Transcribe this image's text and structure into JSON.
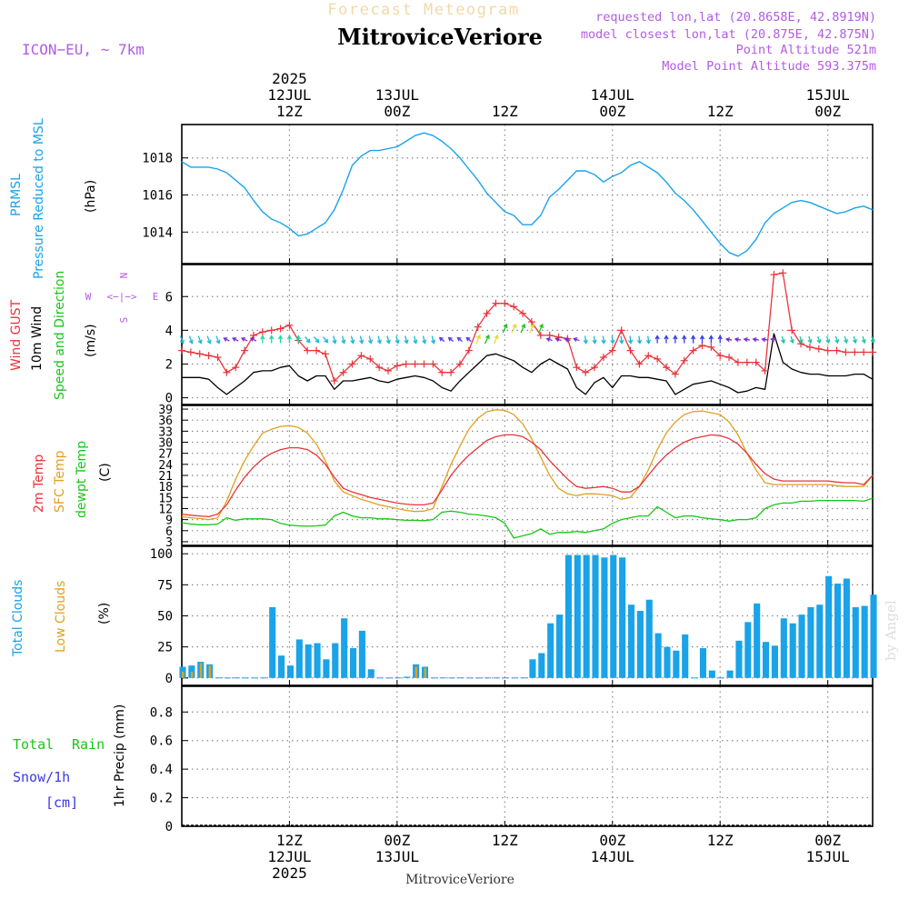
{
  "header": {
    "title_top": "Forecast Meteogram",
    "location": "MitroviceVeriore",
    "model": "ICON−EU,  ~ 7km",
    "requested": "requested lon,lat (20.8658E, 42.8919N)",
    "closest": "model closest lon,lat (20.875E, 42.875N)",
    "point_alt": "Point Altitude 521m",
    "model_alt": "Model Point Altitude 593.375m"
  },
  "time_axis": {
    "year": "2025",
    "ticks": [
      {
        "hour": 12,
        "top": "12Z",
        "date": "12JUL",
        "year": "2025"
      },
      {
        "hour": 24,
        "top": "00Z",
        "date": "13JUL",
        "year": ""
      },
      {
        "hour": 36,
        "top": "12Z",
        "date": "",
        "year": ""
      },
      {
        "hour": 48,
        "top": "00Z",
        "date": "14JUL",
        "year": ""
      },
      {
        "hour": 60,
        "top": "12Z",
        "date": "",
        "year": ""
      },
      {
        "hour": 72,
        "top": "00Z",
        "date": "15JUL",
        "year": ""
      }
    ]
  },
  "footer": {
    "location": "MitroviceVeriore",
    "watermark": "by Angel"
  },
  "panels": {
    "pressure": {
      "label1": "PRMSL",
      "label2": "Pressure Reduced to MSL",
      "unit": "(hPa)"
    },
    "wind": {
      "label1": "Wind GUST",
      "label2": "10m Wind",
      "label3": "Speed and Direction",
      "unit": "(m/s)",
      "compass_n": "N",
      "compass_s": "S",
      "compass_w": "W",
      "compass_e": "E",
      "compass_mid": "<−|−>"
    },
    "temp": {
      "label1": "2m Temp",
      "label2": "SFC Temp",
      "label3": "dewpt Temp",
      "unit": "(C)"
    },
    "clouds": {
      "label1": "Total Clouds",
      "label2": "Low Clouds",
      "unit": "(%)"
    },
    "precip": {
      "label1": "Total",
      "label1b": "Rain",
      "label2": "Snow/1h",
      "label3": "[cm]",
      "unit": "1hr Precip (mm)"
    }
  },
  "colors": {
    "pressure": "#1aa3e8",
    "gust": "#e8343a",
    "wind": "#000000",
    "temp2m": "#e8343a",
    "sfc": "#e0a020",
    "dewpt": "#19c519",
    "total_clouds": "#1aa3e8",
    "low_clouds": "#e0a020",
    "purple": "#b25ce0",
    "rain": "#19c519",
    "snow": "#3a3ae8"
  },
  "chart_data": [
    {
      "type": "line",
      "name": "pressure",
      "x_range": [
        0,
        77
      ],
      "ylim": [
        1012.3,
        1019.8
      ],
      "yticks": [
        1014,
        1016,
        1018
      ],
      "x": [
        0,
        1,
        2,
        3,
        4,
        5,
        6,
        7,
        8,
        9,
        10,
        11,
        12,
        13,
        14,
        15,
        16,
        17,
        18,
        19,
        20,
        21,
        22,
        23,
        24,
        25,
        26,
        27,
        28,
        29,
        30,
        31,
        32,
        33,
        34,
        35,
        36,
        37,
        38,
        39,
        40,
        41,
        42,
        43,
        44,
        45,
        46,
        47,
        48,
        49,
        50,
        51,
        52,
        53,
        54,
        55,
        56,
        57,
        58,
        59,
        60,
        61,
        62,
        63,
        64,
        65,
        66,
        67,
        68,
        69,
        70,
        71,
        72,
        73,
        74,
        75,
        76,
        77
      ],
      "series": [
        {
          "values": [
            1017.8,
            1017.5,
            1017.5,
            1017.5,
            1017.4,
            1017.2,
            1016.8,
            1016.4,
            1015.7,
            1015.1,
            1014.7,
            1014.5,
            1014.2,
            1013.8,
            1013.9,
            1014.2,
            1014.5,
            1015.2,
            1016.3,
            1017.6,
            1018.1,
            1018.4,
            1018.4,
            1018.5,
            1018.6,
            1018.9,
            1019.2,
            1019.35,
            1019.2,
            1018.9,
            1018.5,
            1018.0,
            1017.4,
            1016.8,
            1016.1,
            1015.6,
            1015.1,
            1014.9,
            1014.4,
            1014.4,
            1014.9,
            1015.9,
            1016.3,
            1016.8,
            1017.3,
            1017.3,
            1017.1,
            1016.7,
            1017.0,
            1017.2,
            1017.6,
            1017.8,
            1017.5,
            1017.2,
            1016.7,
            1016.1,
            1015.7,
            1015.2,
            1014.6,
            1014.0,
            1013.4,
            1012.9,
            1012.7,
            1013.0,
            1013.6,
            1014.5,
            1015.0,
            1015.3,
            1015.6,
            1015.7,
            1015.6,
            1015.4,
            1015.2,
            1015.0,
            1015.1,
            1015.3,
            1015.4,
            1015.2
          ]
        }
      ]
    },
    {
      "type": "line",
      "name": "wind",
      "x_range": [
        0,
        77
      ],
      "ylim": [
        -0.4,
        7.9
      ],
      "yticks": [
        0,
        2,
        4,
        6
      ],
      "x": [
        0,
        1,
        2,
        3,
        4,
        5,
        6,
        7,
        8,
        9,
        10,
        11,
        12,
        13,
        14,
        15,
        16,
        17,
        18,
        19,
        20,
        21,
        22,
        23,
        24,
        25,
        26,
        27,
        28,
        29,
        30,
        31,
        32,
        33,
        34,
        35,
        36,
        37,
        38,
        39,
        40,
        41,
        42,
        43,
        44,
        45,
        46,
        47,
        48,
        49,
        50,
        51,
        52,
        53,
        54,
        55,
        56,
        57,
        58,
        59,
        60,
        61,
        62,
        63,
        64,
        65,
        66,
        67,
        68,
        69,
        70,
        71,
        72,
        73,
        74,
        75,
        76,
        77
      ],
      "series": [
        {
          "name": "Wind GUST",
          "values": [
            2.8,
            2.7,
            2.6,
            2.5,
            2.4,
            1.5,
            1.8,
            2.8,
            3.7,
            3.9,
            4.0,
            4.1,
            4.3,
            3.4,
            2.8,
            2.8,
            2.6,
            1.0,
            1.5,
            2.0,
            2.5,
            2.3,
            1.8,
            1.6,
            1.9,
            2.0,
            2.0,
            2.0,
            2.0,
            1.5,
            1.5,
            2.0,
            2.8,
            4.2,
            5.0,
            5.6,
            5.6,
            5.4,
            5.0,
            4.5,
            3.7,
            3.7,
            3.6,
            3.5,
            1.8,
            1.5,
            1.8,
            2.4,
            2.8,
            4.0,
            2.8,
            2.0,
            2.5,
            2.3,
            1.8,
            1.4,
            2.2,
            2.8,
            3.1,
            3.0,
            2.5,
            2.4,
            2.1,
            2.1,
            2.1,
            1.6,
            7.3,
            7.4,
            4.0,
            3.2,
            3.0,
            2.9,
            2.8,
            2.8,
            2.7,
            2.7,
            2.7,
            2.7
          ]
        },
        {
          "name": "10m Wind",
          "values": [
            1.2,
            1.2,
            1.2,
            1.1,
            0.6,
            0.2,
            0.6,
            1.0,
            1.5,
            1.6,
            1.6,
            1.8,
            1.9,
            1.3,
            1.0,
            1.3,
            1.3,
            0.5,
            1.0,
            1.0,
            1.1,
            1.2,
            1.0,
            0.9,
            1.1,
            1.2,
            1.3,
            1.2,
            1.0,
            0.6,
            0.4,
            1.0,
            1.5,
            2.0,
            2.5,
            2.6,
            2.4,
            2.2,
            1.8,
            1.5,
            2.0,
            2.3,
            2.0,
            1.7,
            0.6,
            0.2,
            0.9,
            1.2,
            0.6,
            1.3,
            1.3,
            1.2,
            1.2,
            1.1,
            1.0,
            0.2,
            0.5,
            0.8,
            0.9,
            1.0,
            0.8,
            0.6,
            0.3,
            0.4,
            0.6,
            0.5,
            3.8,
            2.1,
            1.7,
            1.5,
            1.4,
            1.4,
            1.3,
            1.3,
            1.3,
            1.4,
            1.4,
            1.1
          ]
        }
      ]
    },
    {
      "type": "line",
      "name": "temperature",
      "x_range": [
        0,
        77
      ],
      "ylim": [
        2,
        40
      ],
      "yticks": [
        3,
        6,
        9,
        12,
        15,
        18,
        21,
        24,
        27,
        30,
        33,
        36,
        39
      ],
      "x": [
        0,
        1,
        2,
        3,
        4,
        5,
        6,
        7,
        8,
        9,
        10,
        11,
        12,
        13,
        14,
        15,
        16,
        17,
        18,
        19,
        20,
        21,
        22,
        23,
        24,
        25,
        26,
        27,
        28,
        29,
        30,
        31,
        32,
        33,
        34,
        35,
        36,
        37,
        38,
        39,
        40,
        41,
        42,
        43,
        44,
        45,
        46,
        47,
        48,
        49,
        50,
        51,
        52,
        53,
        54,
        55,
        56,
        57,
        58,
        59,
        60,
        61,
        62,
        63,
        64,
        65,
        66,
        67,
        68,
        69,
        70,
        71,
        72,
        73,
        74,
        75,
        76,
        77
      ],
      "series": [
        {
          "name": "2m Temp",
          "values": [
            10.5,
            10.2,
            10,
            9.8,
            10.5,
            13,
            17,
            20.5,
            23.3,
            25.5,
            27,
            28,
            28.5,
            28.5,
            28,
            26.5,
            24,
            20.5,
            17.5,
            16.5,
            15.8,
            15,
            14.5,
            14,
            13.5,
            13.2,
            13,
            13,
            13.5,
            17,
            21,
            24,
            26.5,
            28.5,
            30.5,
            31.5,
            32,
            32,
            31.5,
            30,
            28,
            25,
            22.5,
            20,
            18,
            17.5,
            17.7,
            18,
            17.5,
            16.5,
            16.5,
            18,
            21,
            24,
            26.5,
            28.5,
            30,
            31,
            31.5,
            32,
            31.8,
            31,
            29.5,
            27,
            24,
            21.5,
            20,
            19.5,
            19.5,
            19.5,
            19.5,
            19.5,
            19.5,
            19.2,
            19,
            19,
            18.5,
            21
          ]
        },
        {
          "name": "SFC Temp",
          "values": [
            9.8,
            9.5,
            9.3,
            9.0,
            9.5,
            14,
            20,
            25,
            29,
            32.5,
            33.5,
            34.3,
            34.5,
            34,
            32.5,
            29.5,
            25,
            19.5,
            16.5,
            15.5,
            14.5,
            13.8,
            13,
            12.5,
            12,
            11.5,
            11.2,
            11.3,
            12,
            18,
            24,
            29,
            33.5,
            36.5,
            38.3,
            38.8,
            38.7,
            37.5,
            35,
            31,
            26,
            21,
            17.5,
            16,
            15.5,
            16,
            16,
            15.8,
            15.5,
            14.5,
            15,
            18,
            22.5,
            28,
            32.5,
            35.5,
            37.5,
            38.3,
            38.5,
            38,
            37.5,
            35.5,
            32,
            27,
            22.5,
            19,
            18.5,
            18.5,
            18.5,
            18.5,
            18.5,
            18.5,
            18.5,
            18.2,
            18,
            18,
            18,
            21
          ]
        },
        {
          "name": "dewpt Temp",
          "values": [
            8.2,
            7.8,
            7.6,
            7.6,
            7.8,
            9.5,
            8.8,
            9.2,
            9.2,
            9.2,
            9,
            8,
            7.5,
            7.3,
            7.2,
            7.3,
            7.5,
            10,
            11,
            10,
            9.5,
            9.5,
            9.2,
            9.2,
            9,
            8.8,
            8.8,
            8.7,
            9,
            11,
            11.3,
            11,
            10.5,
            10.3,
            10,
            9.5,
            8,
            4,
            4.6,
            5.2,
            6.5,
            5,
            5.5,
            5.5,
            5.8,
            5.5,
            6,
            6.5,
            8,
            9,
            9.5,
            10,
            10,
            12.5,
            11,
            9.5,
            10,
            10,
            9.5,
            9.2,
            9.0,
            8.6,
            9,
            9,
            9.5,
            12,
            13,
            13.5,
            13.5,
            14,
            14,
            14.2,
            14.2,
            14.2,
            14.2,
            14.2,
            14,
            14.8
          ]
        }
      ]
    },
    {
      "type": "bar",
      "name": "clouds",
      "x_range": [
        0,
        77
      ],
      "ylim": [
        -6,
        106
      ],
      "yticks": [
        0,
        25,
        50,
        75,
        100
      ],
      "x": [
        0,
        1,
        2,
        3,
        4,
        5,
        6,
        7,
        8,
        9,
        10,
        11,
        12,
        13,
        14,
        15,
        16,
        17,
        18,
        19,
        20,
        21,
        22,
        23,
        24,
        25,
        26,
        27,
        28,
        29,
        30,
        31,
        32,
        33,
        34,
        35,
        36,
        37,
        38,
        39,
        40,
        41,
        42,
        43,
        44,
        45,
        46,
        47,
        48,
        49,
        50,
        51,
        52,
        53,
        54,
        55,
        56,
        57,
        58,
        59,
        60,
        61,
        62,
        63,
        64,
        65,
        66,
        67,
        68,
        69,
        70,
        71,
        72,
        73,
        74,
        75,
        76,
        77
      ],
      "series": [
        {
          "name": "Total Clouds",
          "values": [
            9,
            10,
            13,
            11,
            0,
            0,
            0,
            0,
            0,
            0,
            57,
            18,
            10,
            31,
            27,
            28,
            15,
            28,
            48,
            24,
            38,
            7,
            0,
            0,
            0,
            1,
            11,
            9,
            0,
            0,
            0,
            0,
            0,
            0,
            0,
            0,
            0,
            0,
            0,
            15,
            20,
            44,
            51,
            99,
            99,
            99,
            99,
            97,
            99,
            97,
            59,
            54,
            63,
            36,
            25,
            22,
            35,
            0,
            24,
            6,
            0,
            6,
            30,
            45,
            60,
            29,
            26,
            48,
            44,
            51,
            57,
            59,
            82,
            76,
            80,
            57,
            58,
            67
          ]
        },
        {
          "name": "Low Clouds",
          "values": [
            5,
            5,
            12,
            10,
            0,
            0,
            0,
            0,
            0,
            0,
            0,
            0,
            0,
            0,
            0,
            0,
            0,
            0,
            0,
            0,
            0,
            0,
            0,
            0,
            0,
            0,
            9,
            8,
            0,
            0,
            0,
            0,
            0,
            0,
            0,
            0,
            0,
            0,
            0,
            0,
            0,
            0,
            0,
            0,
            0,
            0,
            0,
            0,
            0,
            0,
            0,
            0,
            0,
            0,
            0,
            0,
            0,
            0,
            0,
            0,
            0,
            0,
            0,
            0,
            0,
            0,
            0,
            0,
            0,
            0,
            0,
            0,
            0,
            0,
            0,
            0,
            0,
            0
          ]
        }
      ]
    },
    {
      "type": "bar",
      "name": "precipitation",
      "x_range": [
        0,
        77
      ],
      "ylim": [
        0,
        0.98
      ],
      "yticks": [
        0,
        0.2,
        0.4,
        0.6,
        0.8
      ],
      "series": [
        {
          "values": []
        }
      ]
    }
  ]
}
